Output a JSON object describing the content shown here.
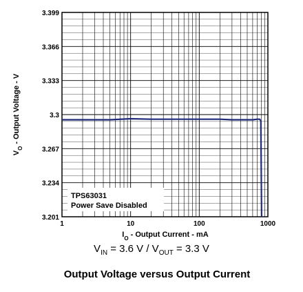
{
  "chart_data": {
    "type": "line",
    "xscale": "log",
    "xlim": [
      1,
      1000
    ],
    "ylim": [
      3.201,
      3.399
    ],
    "xticks": [
      1,
      10,
      100,
      1000
    ],
    "xtick_labels": [
      "1",
      "10",
      "100",
      "1000"
    ],
    "yticks": [
      3.201,
      3.234,
      3.267,
      3.3,
      3.333,
      3.366,
      3.399
    ],
    "ytick_labels": [
      "3.201",
      "3.234",
      "3.267",
      "3.3",
      "3.333",
      "3.366",
      "3.399"
    ],
    "xlabel_main": "I",
    "xlabel_sub": "O",
    "xlabel_rest": " - Output Current - mA",
    "ylabel_main": "V",
    "ylabel_sub": "O",
    "ylabel_rest": " - Output Voltage - V",
    "grid": true,
    "annotation_lines": [
      "TPS63031",
      "Power Save Disabled"
    ],
    "series": [
      {
        "color": "#1f2a7a",
        "x": [
          1,
          2,
          5,
          10,
          20,
          50,
          100,
          200,
          300,
          400,
          500,
          600,
          700,
          760,
          790,
          800,
          810
        ],
        "y": [
          3.295,
          3.295,
          3.295,
          3.296,
          3.2955,
          3.2955,
          3.2955,
          3.2955,
          3.295,
          3.295,
          3.295,
          3.295,
          3.2955,
          3.2955,
          3.294,
          3.25,
          3.201
        ]
      }
    ]
  },
  "conditions": {
    "vin_main": "V",
    "vin_sub": "IN",
    "vin_rest": " = 3.6 V / V",
    "vout_sub": "OUT",
    "vout_rest": " = 3.3 V"
  },
  "caption": "Output Voltage versus Output Current"
}
